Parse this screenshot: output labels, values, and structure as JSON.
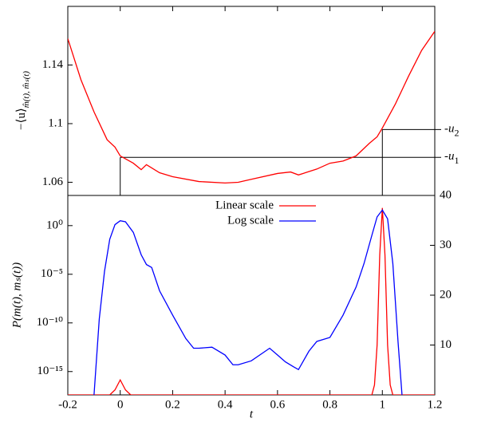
{
  "chart_data": [
    {
      "type": "line",
      "ylabel": "−⟨u⟩",
      "ylabel_sub": "m̂(t), m̂ₛ(t)",
      "color": "#ff0000",
      "x": [
        -0.2,
        -0.15,
        -0.1,
        -0.05,
        -0.02,
        0,
        0.05,
        0.08,
        0.1,
        0.15,
        0.2,
        0.3,
        0.4,
        0.45,
        0.5,
        0.6,
        0.65,
        0.68,
        0.75,
        0.8,
        0.85,
        0.9,
        0.95,
        0.98,
        1.0,
        1.05,
        1.1,
        1.15,
        1.2
      ],
      "values": [
        1.158,
        1.13,
        1.108,
        1.089,
        1.084,
        1.078,
        1.073,
        1.0686,
        1.072,
        1.0665,
        1.0638,
        1.0605,
        1.0595,
        1.06,
        1.062,
        1.066,
        1.067,
        1.065,
        1.069,
        1.073,
        1.0745,
        1.078,
        1.0865,
        1.091,
        1.097,
        1.1135,
        1.1324,
        1.15,
        1.163
      ],
      "xlim": [
        -0.2,
        1.2
      ],
      "ylim": [
        1.051,
        1.18
      ],
      "yticks": [
        1.06,
        1.1,
        1.14
      ],
      "annotations": [
        {
          "label": "-u",
          "sub": "2",
          "x": 1,
          "y": 1.096
        },
        {
          "label": "-u",
          "sub": "1",
          "x": 0,
          "y": 1.077
        }
      ]
    },
    {
      "type": "line",
      "xlabel": "t",
      "ylabel": "P(m(t), mₛ(t))",
      "log_y": true,
      "legend": "top",
      "xlim": [
        -0.2,
        1.2
      ],
      "xticks": [
        -0.2,
        0,
        0.2,
        0.4,
        0.6,
        0.8,
        1,
        1.2
      ],
      "ylim": [
        4e-18,
        1260.0
      ],
      "yticks": [
        {
          "value": 1,
          "label": "10⁰"
        },
        {
          "value": 1e-05,
          "label": "10⁻⁵"
        },
        {
          "value": 1e-10,
          "label": "10⁻¹⁰"
        },
        {
          "value": 1e-15,
          "label": "10⁻¹⁵"
        }
      ],
      "y2lim": [
        0,
        40
      ],
      "y2ticks": [
        10,
        20,
        30,
        40
      ],
      "series": [
        {
          "name": "Linear scale",
          "color": "#ff0000",
          "axis": "y2",
          "x": [
            -0.2,
            -0.04,
            -0.02,
            0,
            0.02,
            0.04,
            0.96,
            0.97,
            0.98,
            0.99,
            1.0,
            1.01,
            1.02,
            1.03,
            1.04,
            1.2
          ],
          "values": [
            0,
            0,
            1,
            3,
            1,
            0,
            0,
            2,
            10,
            28,
            37.5,
            28,
            10,
            2,
            0,
            0
          ]
        },
        {
          "name": "Log scale",
          "color": "#0000ff",
          "x": [
            -0.1,
            -0.08,
            -0.06,
            -0.04,
            -0.02,
            0,
            0.02,
            0.05,
            0.08,
            0.1,
            0.12,
            0.15,
            0.2,
            0.25,
            0.28,
            0.3,
            0.35,
            0.4,
            0.43,
            0.45,
            0.5,
            0.57,
            0.6,
            0.63,
            0.66,
            0.68,
            0.72,
            0.75,
            0.8,
            0.85,
            0.9,
            0.93,
            0.96,
            0.98,
            1.0,
            1.02,
            1.04,
            1.06,
            1.075
          ],
          "values": [
            4e-18,
            2.5e-10,
            2e-05,
            0.04,
            1.26,
            3.16,
            2.5,
            0.2,
            0.001,
            0.0001,
            5e-05,
            2e-07,
            6.3e-10,
            2.5e-12,
            2.5e-13,
            2.5e-13,
            3.2e-13,
            5e-14,
            5e-15,
            5e-15,
            1.26e-14,
            2.5e-13,
            5e-14,
            1e-14,
            3.2e-15,
            1.6e-15,
            1.26e-13,
            1.26e-12,
            3.2e-12,
            6.3e-10,
            5e-07,
            0.000126,
            0.1,
            7.9,
            40,
            5,
            0.000126,
            1e-12,
            4e-18
          ]
        }
      ]
    }
  ]
}
